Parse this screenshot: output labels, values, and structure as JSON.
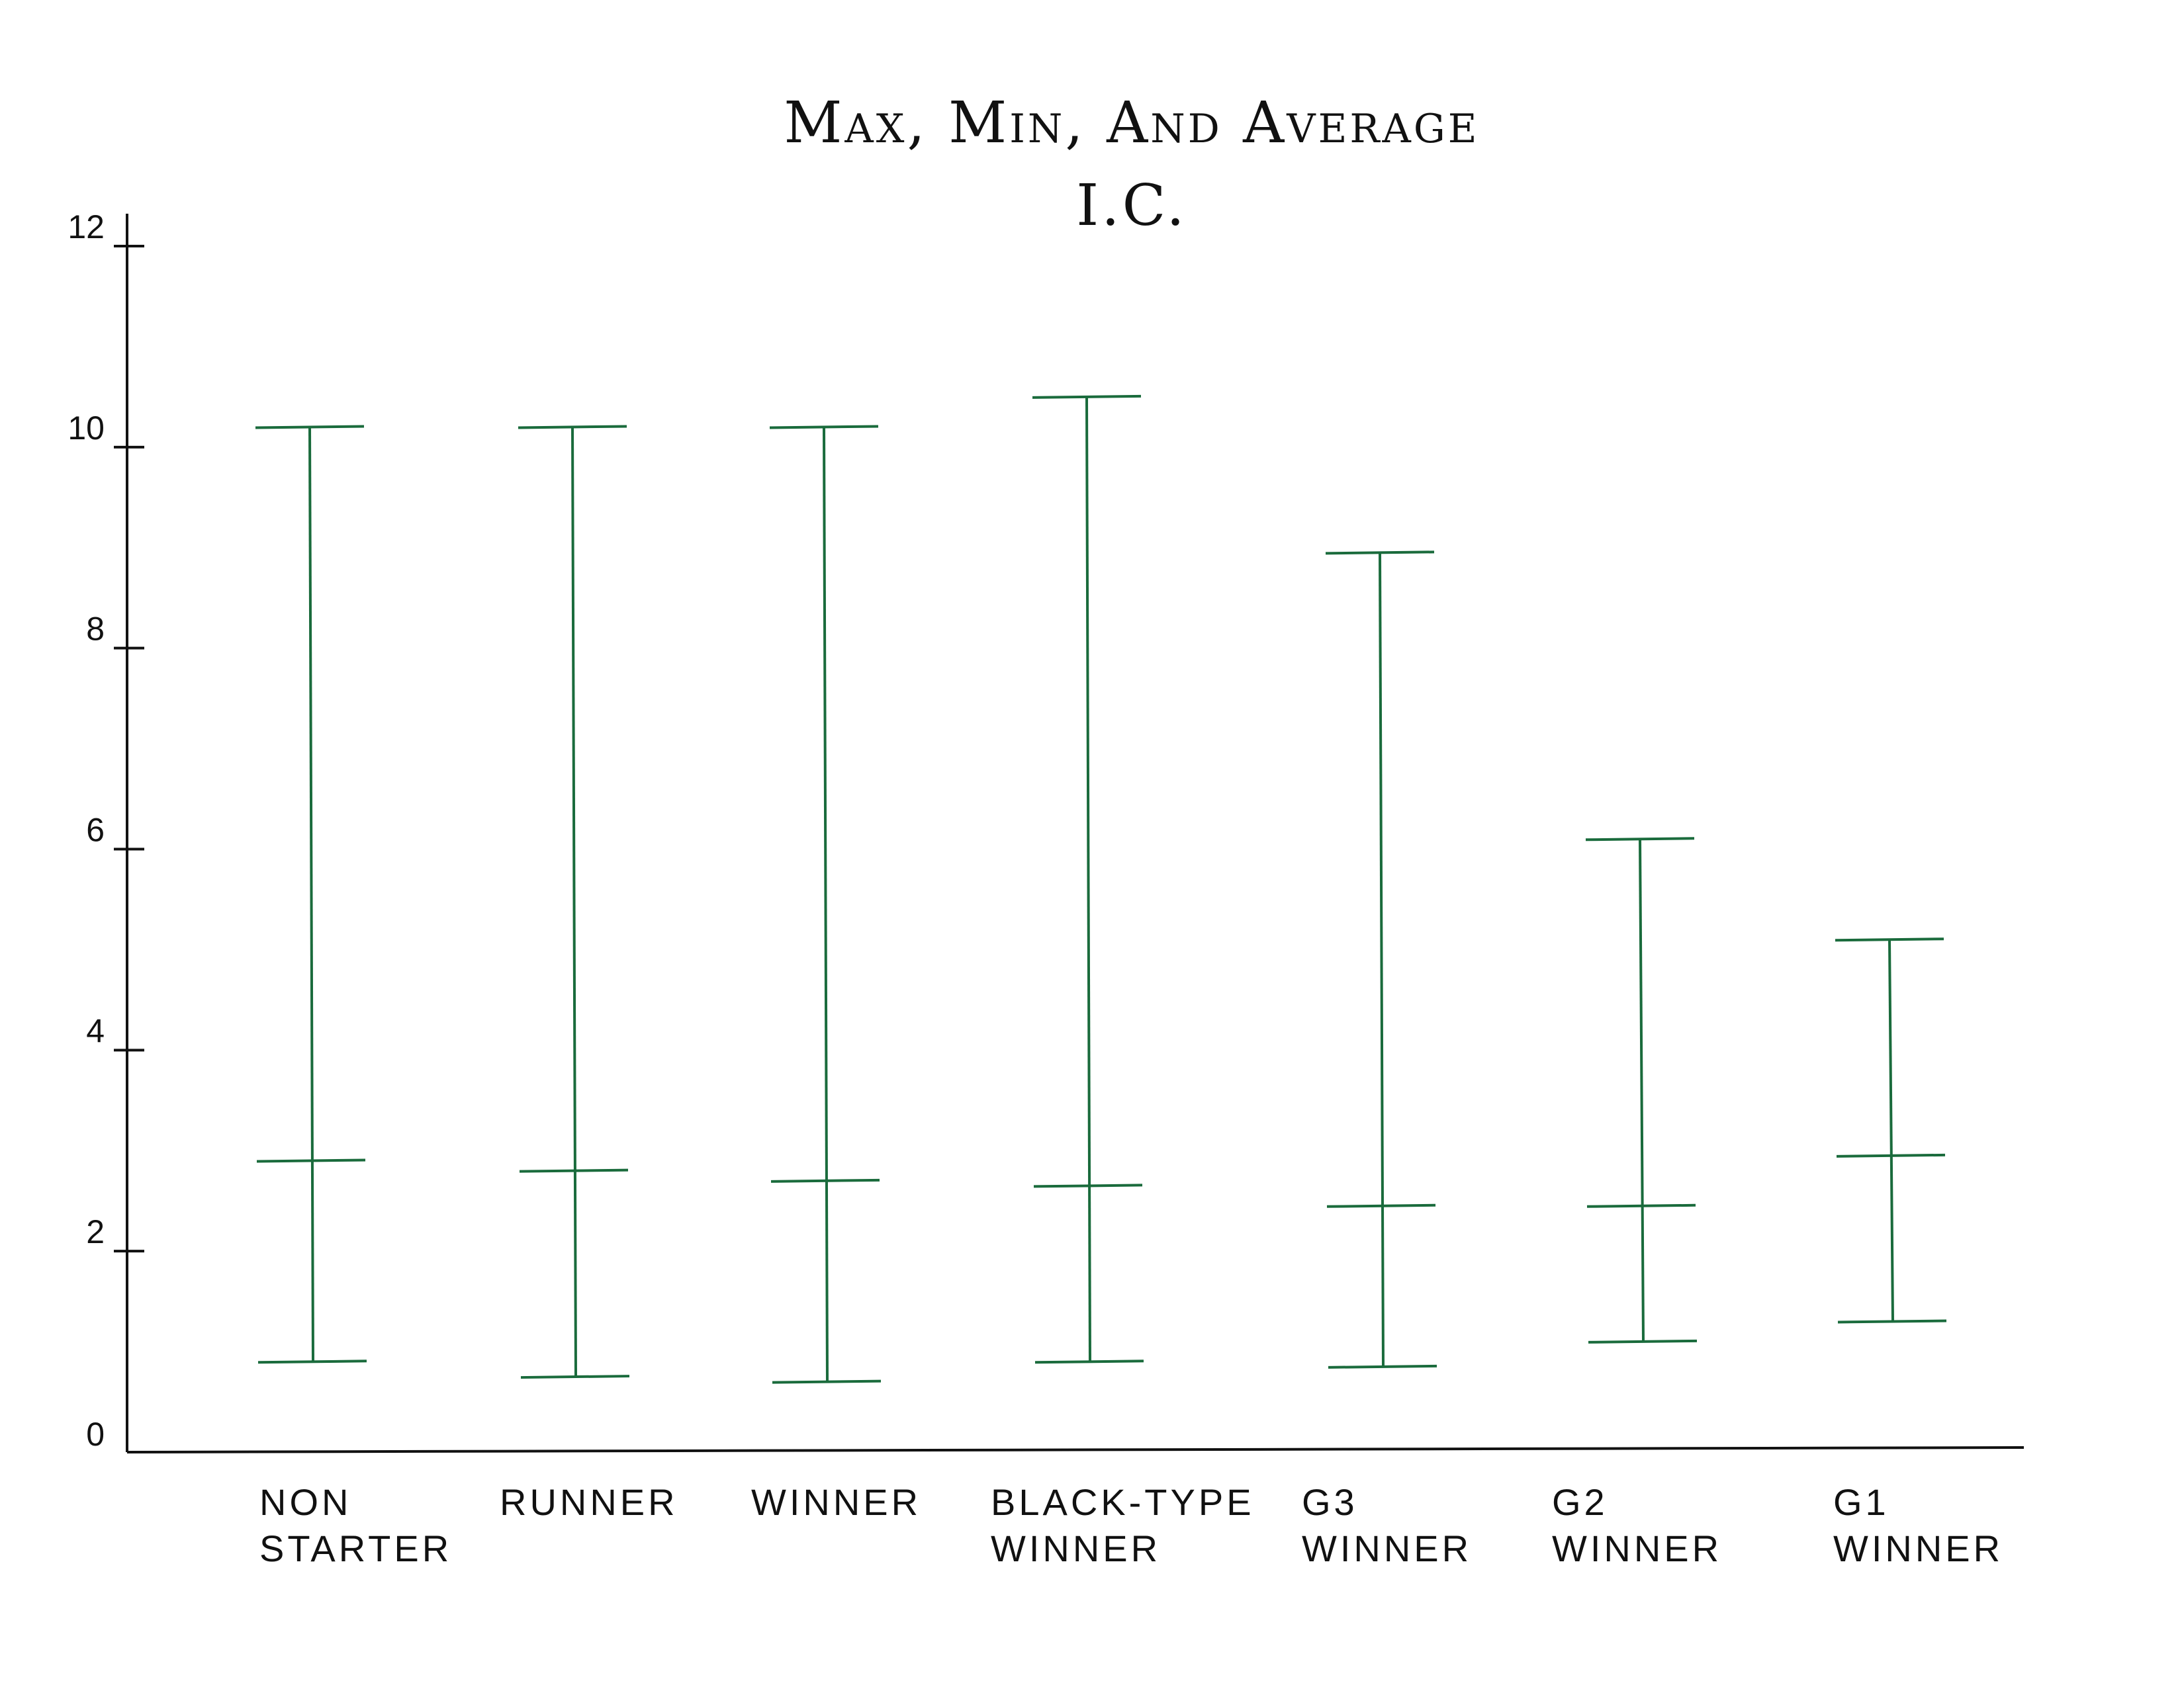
{
  "chart_data": {
    "type": "range",
    "title": [
      "Max, Min, And Average",
      "I.C."
    ],
    "categories": [
      [
        "NON",
        "STARTER"
      ],
      [
        "RUNNER"
      ],
      [
        "WINNER"
      ],
      [
        "BLACK-TYPE",
        "WINNER"
      ],
      [
        "G3",
        "WINNER"
      ],
      [
        "G2",
        "WINNER"
      ],
      [
        "G1",
        "WINNER"
      ]
    ],
    "series": [
      {
        "values_max": [
          10.2,
          10.2,
          10.2,
          10.5,
          8.95,
          6.1,
          5.1
        ]
      },
      {
        "values_avg": [
          2.9,
          2.8,
          2.7,
          2.65,
          2.45,
          2.45,
          2.95
        ]
      },
      {
        "values_min": [
          0.9,
          0.75,
          0.7,
          0.9,
          0.85,
          1.1,
          1.3
        ]
      }
    ],
    "ylim": [
      0,
      12
    ],
    "yticks": [
      0,
      2,
      4,
      6,
      8,
      10,
      12
    ],
    "ytick_labels": [
      "0",
      "2",
      "4",
      "6",
      "8",
      "10",
      "12"
    ],
    "xlabel": "",
    "ylabel": "",
    "grid": false,
    "colors": {
      "range": "#1a6b3c",
      "axis": "#111111"
    }
  }
}
